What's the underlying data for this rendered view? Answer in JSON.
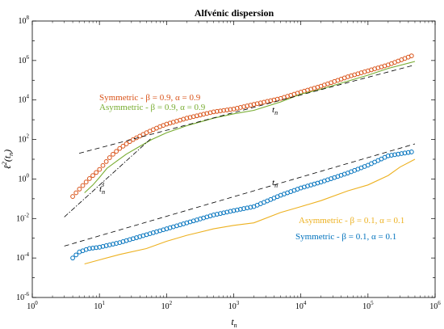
{
  "chart_data": {
    "type": "scatter",
    "title": "Alfvénic dispersion",
    "xlabel": {
      "base": "t",
      "sub": "n"
    },
    "ylabel": {
      "base": "ℓ",
      "sup": "2",
      "arg": "(t",
      "argsub": "n",
      "close": ")"
    },
    "x_scale": "log",
    "y_scale": "log",
    "xlim": [
      1,
      1000000
    ],
    "ylim": [
      1e-06,
      100000000
    ],
    "x_tick_labels": [
      {
        "base": "10",
        "exp": "0"
      },
      {
        "base": "10",
        "exp": "1"
      },
      {
        "base": "10",
        "exp": "2"
      },
      {
        "base": "10",
        "exp": "3"
      },
      {
        "base": "10",
        "exp": "4"
      },
      {
        "base": "10",
        "exp": "5"
      },
      {
        "base": "10",
        "exp": "6"
      }
    ],
    "y_tick_labels": [
      {
        "base": "10",
        "exp": "-6"
      },
      {
        "base": "10",
        "exp": "-4"
      },
      {
        "base": "10",
        "exp": "-2"
      },
      {
        "base": "10",
        "exp": "0"
      },
      {
        "base": "10",
        "exp": "2"
      },
      {
        "base": "10",
        "exp": "4"
      },
      {
        "base": "10",
        "exp": "6"
      },
      {
        "base": "10",
        "exp": "8"
      }
    ],
    "grid": false,
    "colors": {
      "sym_high": "#d95319",
      "asym_high": "#77ac30",
      "asym_low": "#edb120",
      "sym_low": "#0072bd",
      "ref": "#000000"
    },
    "series": [
      {
        "name": "Symmetric - β = 0.9, α = 0.9",
        "style": "markers",
        "color": "#d95319",
        "anchors": [
          [
            4,
            0.13
          ],
          [
            5,
            0.3
          ],
          [
            7,
            1.0
          ],
          [
            10,
            3.0
          ],
          [
            15,
            15
          ],
          [
            20,
            35
          ],
          [
            30,
            90
          ],
          [
            50,
            220
          ],
          [
            80,
            450
          ],
          [
            100,
            600
          ],
          [
            200,
            1200
          ],
          [
            500,
            2500
          ],
          [
            1000,
            3500
          ],
          [
            2000,
            6000
          ],
          [
            5000,
            12000
          ],
          [
            10000,
            25000
          ],
          [
            20000,
            50000
          ],
          [
            50000,
            150000
          ],
          [
            100000,
            300000
          ],
          [
            200000,
            600000
          ],
          [
            500000,
            2000000
          ]
        ]
      },
      {
        "name": "Asymmetric - β = 0.9, α = 0.9",
        "style": "line",
        "color": "#77ac30",
        "points": [
          [
            6,
            0.2
          ],
          [
            8,
            0.5
          ],
          [
            10,
            1.2
          ],
          [
            13,
            3.5
          ],
          [
            18,
            8
          ],
          [
            25,
            18
          ],
          [
            40,
            45
          ],
          [
            60,
            100
          ],
          [
            100,
            220
          ],
          [
            200,
            500
          ],
          [
            500,
            1200
          ],
          [
            1000,
            2000
          ],
          [
            2000,
            3000
          ],
          [
            5000,
            8000
          ],
          [
            10000,
            20000
          ],
          [
            20000,
            35000
          ],
          [
            50000,
            90000
          ],
          [
            100000,
            180000
          ],
          [
            200000,
            400000
          ],
          [
            500000,
            900000
          ]
        ]
      },
      {
        "name": "Asymmetric - β = 0.1, α = 0.1",
        "style": "line",
        "color": "#edb120",
        "points": [
          [
            6,
            5e-05
          ],
          [
            10,
            8e-05
          ],
          [
            20,
            0.00015
          ],
          [
            50,
            0.0003
          ],
          [
            100,
            0.0007
          ],
          [
            200,
            0.0014
          ],
          [
            500,
            0.003
          ],
          [
            1000,
            0.0045
          ],
          [
            2000,
            0.006
          ],
          [
            5000,
            0.02
          ],
          [
            10000,
            0.04
          ],
          [
            20000,
            0.08
          ],
          [
            50000,
            0.25
          ],
          [
            100000,
            0.5
          ],
          [
            200000,
            1.5
          ],
          [
            300000,
            4
          ],
          [
            500000,
            10
          ]
        ]
      },
      {
        "name": "Symmetric - β = 0.1, α = 0.1",
        "style": "markers",
        "color": "#0072bd",
        "anchors": [
          [
            4,
            0.0001
          ],
          [
            5,
            0.0002
          ],
          [
            7,
            0.0003
          ],
          [
            10,
            0.00035
          ],
          [
            20,
            0.0006
          ],
          [
            50,
            0.0015
          ],
          [
            100,
            0.003
          ],
          [
            200,
            0.006
          ],
          [
            500,
            0.015
          ],
          [
            1000,
            0.025
          ],
          [
            2000,
            0.04
          ],
          [
            5000,
            0.15
          ],
          [
            10000,
            0.35
          ],
          [
            20000,
            0.7
          ],
          [
            50000,
            2
          ],
          [
            100000,
            5
          ],
          [
            200000,
            15
          ],
          [
            500000,
            25
          ]
        ]
      },
      {
        "name": "",
        "style": "dashed",
        "color": "#000000",
        "points": [
          [
            5,
            20
          ],
          [
            500000,
            600000
          ]
        ]
      },
      {
        "name": "",
        "style": "dashed",
        "color": "#000000",
        "points": [
          [
            3,
            0.0004
          ],
          [
            500000,
            60
          ]
        ]
      },
      {
        "name": "",
        "style": "dashdot",
        "color": "#000000",
        "points": [
          [
            3,
            0.012
          ],
          [
            60,
            120
          ]
        ]
      }
    ],
    "annotations": [
      {
        "id": "sym-high",
        "text": "Symmetric - β = 0.9, α = 0.9",
        "color": "#d95319"
      },
      {
        "id": "asym-high",
        "text": "Asymmetric - β = 0.9, α = 0.9",
        "color": "#77ac30"
      },
      {
        "id": "asym-low",
        "text": "Asymmetric - β = 0.1, α = 0.1",
        "color": "#edb120"
      },
      {
        "id": "sym-low",
        "text": "Symmetric - β = 0.1, α = 0.1",
        "color": "#0072bd"
      },
      {
        "id": "slope-tn-upper",
        "base": "t",
        "sub": "n",
        "color": "#000000"
      },
      {
        "id": "slope-tn-lower",
        "base": "t",
        "sub": "n",
        "color": "#000000"
      },
      {
        "id": "slope-tn3",
        "base": "t",
        "sub": "n",
        "sup": "3",
        "color": "#000000"
      }
    ]
  }
}
